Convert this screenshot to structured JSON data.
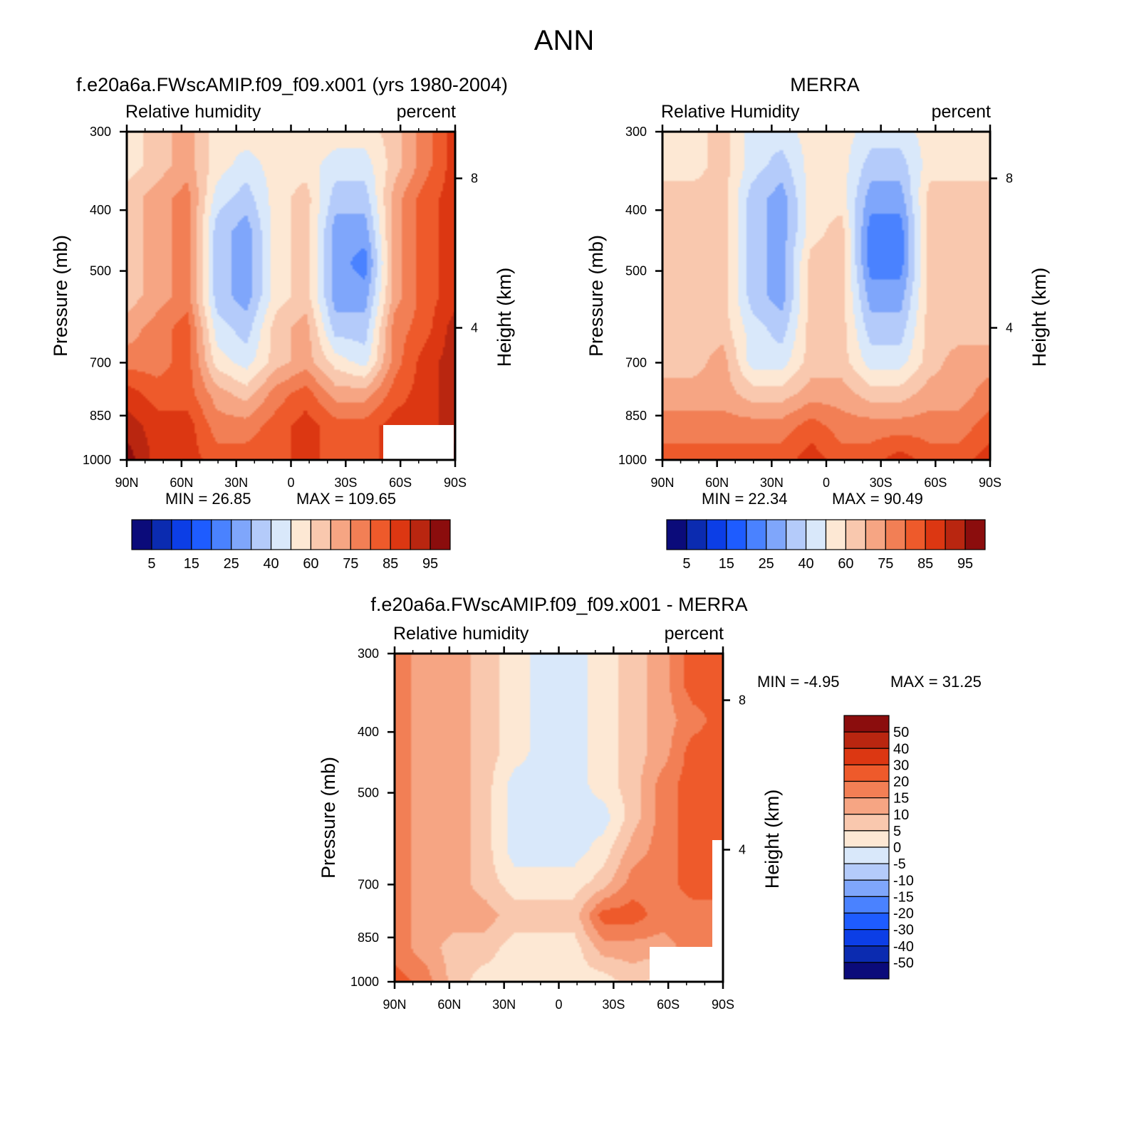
{
  "page_title": "ANN",
  "colors": {
    "abs_scale": [
      "#0b0b7a",
      "#0b2bb0",
      "#0c3ee6",
      "#1e5cff",
      "#4a82ff",
      "#7fa6fb",
      "#b4cbfa",
      "#d9e8fa",
      "#fde8d4",
      "#f9c8ae",
      "#f6a583",
      "#f27f55",
      "#ee5a2b",
      "#dc3712",
      "#b92610",
      "#8b0d0d"
    ],
    "diff_scale": [
      "#0b0b7a",
      "#0b2bb0",
      "#0c3ee6",
      "#1e5cff",
      "#4a82ff",
      "#7fa6fb",
      "#b4cbfa",
      "#d9e8fa",
      "#fde8d4",
      "#f9c8ae",
      "#f6a583",
      "#f27f55",
      "#ee5a2b",
      "#dc3712",
      "#b92610",
      "#8b0d0d"
    ]
  },
  "chart_data": [
    {
      "type": "heatmap",
      "title": "f.e20a6a.FWscAMIP.f09_f09.x001 (yrs 1980-2004)",
      "variable_label": "Relative humidity",
      "units_label": "percent",
      "xlabel": "",
      "ylabel": "Pressure (mb)",
      "ylabel_right": "Height (km)",
      "x_ticks": [
        "90N",
        "60N",
        "30N",
        "0",
        "30S",
        "60S",
        "90S"
      ],
      "y_ticks": [
        "300",
        "400",
        "500",
        "700",
        "850",
        "1000"
      ],
      "y_values": [
        300,
        400,
        500,
        700,
        850,
        1000
      ],
      "y_right_ticks": [
        "8",
        "4"
      ],
      "min_text": "MIN =   26.85",
      "max_text": "MAX = 109.65",
      "colorbar_labels": [
        "5",
        "15",
        "25",
        "40",
        "60",
        "75",
        "85",
        "95"
      ],
      "field_columns": [
        [
          8,
          8,
          9,
          9,
          9,
          9,
          10,
          11,
          13,
          14,
          15
        ],
        [
          9,
          9,
          10,
          10,
          10,
          10,
          11,
          11,
          12,
          13,
          13
        ],
        [
          10,
          10,
          11,
          11,
          11,
          11,
          12,
          12,
          12,
          13,
          13
        ],
        [
          8,
          8,
          7,
          6,
          6,
          6,
          7,
          8,
          10,
          11,
          12
        ],
        [
          8,
          7,
          6,
          5,
          5,
          5,
          6,
          7,
          9,
          11,
          12
        ],
        [
          8,
          8,
          8,
          8,
          8,
          8,
          9,
          9,
          11,
          12,
          12
        ],
        [
          8,
          8,
          9,
          9,
          9,
          9,
          10,
          10,
          12,
          13,
          13
        ],
        [
          8,
          7,
          6,
          5,
          5,
          5,
          6,
          8,
          10,
          12,
          12
        ],
        [
          8,
          7,
          6,
          5,
          4,
          5,
          6,
          7,
          10,
          12,
          12
        ],
        [
          9,
          9,
          10,
          10,
          10,
          10,
          11,
          11,
          12,
          13,
          13
        ],
        [
          11,
          11,
          12,
          12,
          12,
          12,
          12,
          13,
          13,
          13,
          14
        ],
        [
          13,
          13,
          13,
          13,
          13,
          13,
          14,
          14,
          14,
          14,
          15
        ]
      ]
    },
    {
      "type": "heatmap",
      "title": "MERRA",
      "variable_label": "Relative Humidity",
      "units_label": "percent",
      "xlabel": "",
      "ylabel": "Pressure (mb)",
      "ylabel_right": "Height (km)",
      "x_ticks": [
        "90N",
        "60N",
        "30N",
        "0",
        "30S",
        "60S",
        "90S"
      ],
      "y_ticks": [
        "300",
        "400",
        "500",
        "700",
        "850",
        "1000"
      ],
      "y_values": [
        300,
        400,
        500,
        700,
        850,
        1000
      ],
      "y_right_ticks": [
        "8",
        "4"
      ],
      "min_text": "MIN =   22.34",
      "max_text": "MAX =   90.49",
      "colorbar_labels": [
        "5",
        "15",
        "25",
        "40",
        "60",
        "75",
        "85",
        "95"
      ],
      "field_columns": [
        [
          8,
          8,
          9,
          9,
          9,
          9,
          9,
          9,
          10,
          11,
          12
        ],
        [
          8,
          8,
          9,
          9,
          9,
          9,
          9,
          9,
          10,
          11,
          12
        ],
        [
          9,
          9,
          9,
          9,
          9,
          9,
          9,
          10,
          10,
          11,
          12
        ],
        [
          7,
          7,
          6,
          6,
          6,
          6,
          7,
          7,
          9,
          11,
          12
        ],
        [
          7,
          6,
          5,
          5,
          5,
          5,
          6,
          7,
          9,
          11,
          12
        ],
        [
          8,
          8,
          8,
          8,
          9,
          9,
          9,
          9,
          10,
          12,
          13
        ],
        [
          8,
          8,
          8,
          9,
          9,
          9,
          9,
          9,
          10,
          11,
          12
        ],
        [
          7,
          6,
          5,
          4,
          4,
          5,
          6,
          7,
          9,
          11,
          12
        ],
        [
          7,
          6,
          5,
          4,
          4,
          5,
          6,
          7,
          9,
          11,
          13
        ],
        [
          8,
          8,
          9,
          9,
          9,
          9,
          9,
          9,
          10,
          11,
          12
        ],
        [
          8,
          8,
          9,
          9,
          9,
          9,
          9,
          10,
          10,
          11,
          12
        ],
        [
          8,
          8,
          9,
          9,
          9,
          9,
          9,
          10,
          11,
          12,
          13
        ]
      ]
    },
    {
      "type": "heatmap",
      "title": "f.e20a6a.FWscAMIP.f09_f09.x001 - MERRA",
      "variable_label": "Relative humidity",
      "units_label": "percent",
      "xlabel": "",
      "ylabel": "Pressure (mb)",
      "ylabel_right": "Height (km)",
      "x_ticks": [
        "90N",
        "60N",
        "30N",
        "0",
        "30S",
        "60S",
        "90S"
      ],
      "y_ticks": [
        "300",
        "400",
        "500",
        "700",
        "850",
        "1000"
      ],
      "y_values": [
        300,
        400,
        500,
        700,
        850,
        1000
      ],
      "y_right_ticks": [
        "8",
        "4"
      ],
      "min_text": "MIN =    -4.95",
      "max_text": "MAX =   31.25",
      "colorbar_labels": [
        "50",
        "40",
        "30",
        "20",
        "15",
        "10",
        "5",
        "0",
        "-5",
        "-10",
        "-15",
        "-20",
        "-30",
        "-40",
        "-50"
      ],
      "field_columns": [
        [
          11,
          11,
          11,
          11,
          11,
          11,
          11,
          11,
          11,
          11,
          12
        ],
        [
          10,
          10,
          10,
          10,
          10,
          10,
          10,
          10,
          10,
          10,
          11
        ],
        [
          10,
          10,
          10,
          10,
          10,
          10,
          10,
          10,
          10,
          9,
          9
        ],
        [
          9,
          9,
          9,
          9,
          9,
          9,
          9,
          9,
          10,
          9,
          8
        ],
        [
          8,
          8,
          8,
          8,
          7,
          7,
          7,
          8,
          9,
          8,
          8
        ],
        [
          7,
          7,
          7,
          7,
          7,
          7,
          7,
          8,
          9,
          8,
          8
        ],
        [
          7,
          7,
          7,
          7,
          7,
          7,
          7,
          8,
          9,
          8,
          8
        ],
        [
          8,
          8,
          8,
          8,
          8,
          7,
          8,
          9,
          12,
          10,
          8
        ],
        [
          9,
          9,
          9,
          9,
          9,
          9,
          10,
          11,
          12,
          10,
          9
        ],
        [
          10,
          10,
          10,
          10,
          11,
          11,
          11,
          11,
          11,
          10,
          8
        ],
        [
          12,
          12,
          11,
          12,
          12,
          12,
          12,
          12,
          11,
          11,
          9
        ],
        [
          12,
          12,
          12,
          12,
          12,
          12,
          12,
          12,
          11,
          11,
          10
        ]
      ]
    }
  ]
}
